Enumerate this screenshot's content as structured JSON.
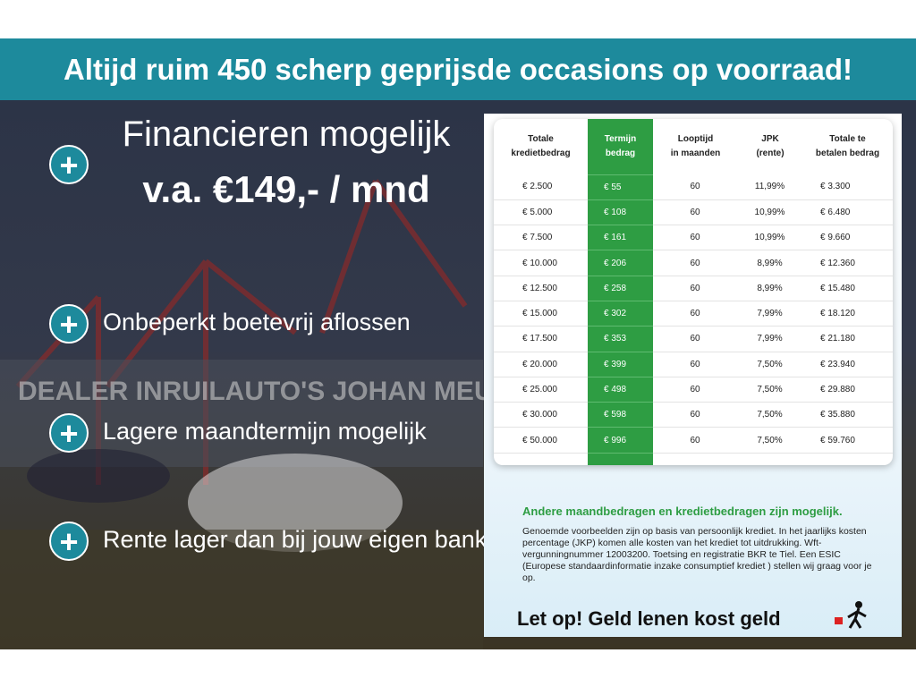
{
  "banner": "Altijd ruim 450 scherp geprijsde occasions op voorraad!",
  "headline": {
    "line1": "Financieren mogelijk",
    "line2": "v.a. €149,- / mnd"
  },
  "bullets": [
    "Onbeperkt boetevrij aflossen",
    "Lagere maandtermijn mogelijk",
    "Rente lager dan bij jouw eigen bank"
  ],
  "table": {
    "headers": [
      "Totale\nkredietbedrag",
      "Termijn\nbedrag",
      "Looptijd\nin maanden",
      "JPK\n(rente)",
      "Totale te\nbetalen bedrag"
    ],
    "rows": [
      [
        "€ 2.500",
        "€ 55",
        "60",
        "11,99%",
        "€ 3.300"
      ],
      [
        "€ 5.000",
        "€ 108",
        "60",
        "10,99%",
        "€ 6.480"
      ],
      [
        "€ 7.500",
        "€ 161",
        "60",
        "10,99%",
        "€ 9.660"
      ],
      [
        "€ 10.000",
        "€ 206",
        "60",
        "8,99%",
        "€ 12.360"
      ],
      [
        "€ 12.500",
        "€ 258",
        "60",
        "8,99%",
        "€ 15.480"
      ],
      [
        "€ 15.000",
        "€ 302",
        "60",
        "7,99%",
        "€ 18.120"
      ],
      [
        "€ 17.500",
        "€ 353",
        "60",
        "7,99%",
        "€ 21.180"
      ],
      [
        "€ 20.000",
        "€ 399",
        "60",
        "7,50%",
        "€ 23.940"
      ],
      [
        "€ 25.000",
        "€ 498",
        "60",
        "7,50%",
        "€ 29.880"
      ],
      [
        "€ 30.000",
        "€ 598",
        "60",
        "7,50%",
        "€ 35.880"
      ],
      [
        "€ 50.000",
        "€ 996",
        "60",
        "7,50%",
        "€ 59.760"
      ]
    ]
  },
  "note_title": "Andere maandbedragen en kredietbedragen zijn mogelijk.",
  "note_text": "Genoemde voorbeelden zijn op basis van persoonlijk krediet. In het jaarlijks kosten percentage (JKP) komen alle kosten van het krediet tot uitdrukking. Wft-vergunningnummer 12003200. Toetsing en registratie BKR te Tiel. Een ESIC (Europese standaardinformatie inzake consumptief krediet ) stellen wij graag voor je op.",
  "warning": "Let op! Geld lenen kost geld"
}
